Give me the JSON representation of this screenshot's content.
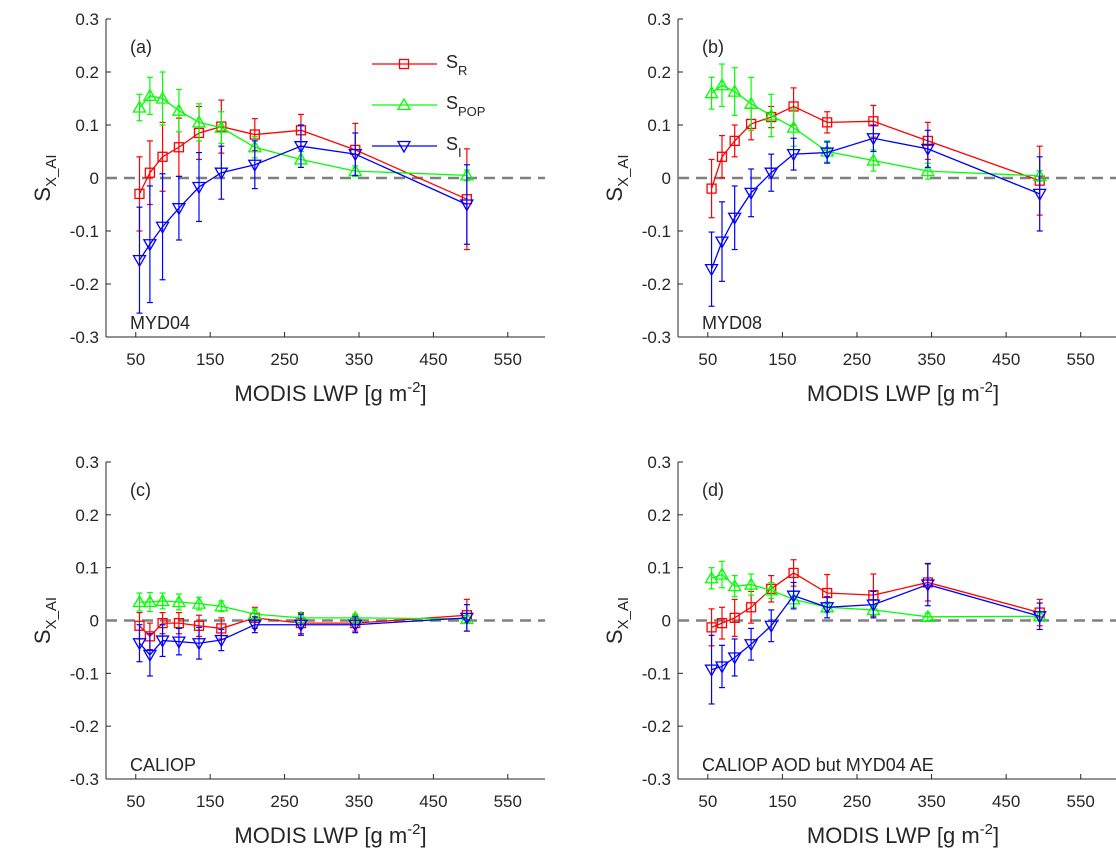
{
  "figure": {
    "xlabel": "MODIS LWP [g m",
    "xlabel_exp": "-2",
    "xlabel_close": "]",
    "ylabel": "S",
    "ylabel_sub": "X_AI",
    "zero_line_color": "#808080"
  },
  "legend": [
    {
      "base": "S",
      "sub": "R",
      "color": "#ff0000",
      "marker": "square"
    },
    {
      "base": "S",
      "sub": "POP",
      "color": "#00ff00",
      "marker": "triangle-up"
    },
    {
      "base": "S",
      "sub": "I",
      "color": "#0000ff",
      "marker": "triangle-down"
    }
  ],
  "chart_data": [
    {
      "type": "line",
      "panel": "(a)",
      "source": "MYD04",
      "xlim": [
        10,
        600
      ],
      "ylim": [
        -0.3,
        0.3
      ],
      "xticks": [
        50,
        150,
        250,
        350,
        450,
        550
      ],
      "yticks": [
        -0.3,
        -0.2,
        -0.1,
        0,
        0.1,
        0.2,
        0.3
      ],
      "x": [
        55,
        69,
        86,
        108,
        135,
        165,
        210,
        272,
        345,
        495
      ],
      "series": [
        {
          "name": "S_R",
          "color": "#ff0000",
          "marker": "square",
          "values": [
            -0.03,
            0.01,
            0.04,
            0.058,
            0.085,
            0.097,
            0.082,
            0.09,
            0.053,
            -0.04
          ],
          "errors": [
            0.07,
            0.06,
            0.065,
            0.055,
            0.05,
            0.05,
            0.03,
            0.03,
            0.05,
            0.095
          ]
        },
        {
          "name": "S_POP",
          "color": "#00ff00",
          "marker": "triangle-up",
          "values": [
            0.133,
            0.155,
            0.15,
            0.127,
            0.105,
            0.095,
            0.058,
            0.035,
            0.013,
            0.005
          ],
          "errors": [
            0.025,
            0.035,
            0.05,
            0.04,
            0.035,
            0.03,
            0.02,
            0.015,
            0.01,
            0.01
          ]
        },
        {
          "name": "S_I",
          "color": "#0000ff",
          "marker": "triangle-down",
          "values": [
            -0.155,
            -0.125,
            -0.092,
            -0.057,
            -0.017,
            0.01,
            0.025,
            0.06,
            0.045,
            -0.05
          ],
          "errors": [
            0.1,
            0.11,
            0.1,
            0.06,
            0.065,
            0.05,
            0.045,
            0.04,
            0.04,
            0.075
          ]
        }
      ]
    },
    {
      "type": "line",
      "panel": "(b)",
      "source": "MYD08",
      "xlim": [
        10,
        600
      ],
      "ylim": [
        -0.3,
        0.3
      ],
      "xticks": [
        50,
        150,
        250,
        350,
        450,
        550
      ],
      "yticks": [
        -0.3,
        -0.2,
        -0.1,
        0,
        0.1,
        0.2,
        0.3
      ],
      "x": [
        55,
        69,
        86,
        108,
        135,
        165,
        210,
        272,
        345,
        495
      ],
      "series": [
        {
          "name": "S_R",
          "color": "#ff0000",
          "marker": "square",
          "values": [
            -0.02,
            0.04,
            0.07,
            0.102,
            0.115,
            0.135,
            0.105,
            0.107,
            0.07,
            -0.005
          ],
          "errors": [
            0.055,
            0.04,
            0.03,
            0.03,
            0.02,
            0.035,
            0.02,
            0.03,
            0.035,
            0.065
          ]
        },
        {
          "name": "S_POP",
          "color": "#00ff00",
          "marker": "triangle-up",
          "values": [
            0.16,
            0.175,
            0.163,
            0.14,
            0.118,
            0.095,
            0.05,
            0.033,
            0.013,
            0.004
          ],
          "errors": [
            0.03,
            0.04,
            0.045,
            0.05,
            0.04,
            0.035,
            0.02,
            0.02,
            0.015,
            0.01
          ]
        },
        {
          "name": "S_I",
          "color": "#0000ff",
          "marker": "triangle-down",
          "values": [
            -0.172,
            -0.12,
            -0.075,
            -0.028,
            0.01,
            0.045,
            0.048,
            0.075,
            0.055,
            -0.03
          ],
          "errors": [
            0.07,
            0.075,
            0.06,
            0.045,
            0.035,
            0.03,
            0.02,
            0.025,
            0.035,
            0.07
          ]
        }
      ]
    },
    {
      "type": "line",
      "panel": "(c)",
      "source": "CALIOP",
      "xlim": [
        10,
        600
      ],
      "ylim": [
        -0.3,
        0.3
      ],
      "xticks": [
        50,
        150,
        250,
        350,
        450,
        550
      ],
      "yticks": [
        -0.3,
        -0.2,
        -0.1,
        0,
        0.1,
        0.2,
        0.3
      ],
      "x": [
        55,
        69,
        86,
        108,
        135,
        165,
        210,
        272,
        345,
        495
      ],
      "series": [
        {
          "name": "S_R",
          "color": "#ff0000",
          "marker": "square",
          "values": [
            -0.01,
            -0.03,
            -0.005,
            -0.005,
            -0.01,
            -0.015,
            0.005,
            -0.005,
            -0.005,
            0.01
          ],
          "errors": [
            0.025,
            0.025,
            0.02,
            0.02,
            0.02,
            0.02,
            0.02,
            0.02,
            0.015,
            0.03
          ]
        },
        {
          "name": "S_POP",
          "color": "#00ff00",
          "marker": "triangle-up",
          "values": [
            0.035,
            0.035,
            0.037,
            0.035,
            0.032,
            0.027,
            0.012,
            0.005,
            0.005,
            0.003
          ],
          "errors": [
            0.017,
            0.018,
            0.015,
            0.015,
            0.012,
            0.01,
            0.01,
            0.008,
            0.007,
            0.007
          ]
        },
        {
          "name": "S_I",
          "color": "#0000ff",
          "marker": "triangle-down",
          "values": [
            -0.043,
            -0.065,
            -0.038,
            -0.04,
            -0.043,
            -0.037,
            -0.008,
            -0.008,
            -0.008,
            0.005
          ],
          "errors": [
            0.035,
            0.04,
            0.03,
            0.025,
            0.03,
            0.02,
            0.015,
            0.02,
            0.015,
            0.025
          ]
        }
      ]
    },
    {
      "type": "line",
      "panel": "(d)",
      "source": "CALIOP AOD but MYD04 AE",
      "xlim": [
        10,
        600
      ],
      "ylim": [
        -0.3,
        0.3
      ],
      "xticks": [
        50,
        150,
        250,
        350,
        450,
        550
      ],
      "yticks": [
        -0.3,
        -0.2,
        -0.1,
        0,
        0.1,
        0.2,
        0.3
      ],
      "x": [
        55,
        69,
        86,
        108,
        135,
        165,
        210,
        272,
        345,
        495
      ],
      "series": [
        {
          "name": "S_R",
          "color": "#ff0000",
          "marker": "square",
          "values": [
            -0.013,
            -0.005,
            0.005,
            0.025,
            0.06,
            0.09,
            0.052,
            0.048,
            0.072,
            0.015
          ],
          "errors": [
            0.035,
            0.03,
            0.035,
            0.03,
            0.025,
            0.025,
            0.035,
            0.04,
            0.035,
            0.025
          ]
        },
        {
          "name": "S_POP",
          "color": "#00ff00",
          "marker": "triangle-up",
          "values": [
            0.08,
            0.087,
            0.065,
            0.068,
            0.057,
            0.04,
            0.025,
            0.02,
            0.007,
            0.008
          ],
          "errors": [
            0.02,
            0.025,
            0.02,
            0.02,
            0.015,
            0.015,
            0.01,
            0.01,
            0.007,
            0.007
          ]
        },
        {
          "name": "S_I",
          "color": "#0000ff",
          "marker": "triangle-down",
          "values": [
            -0.093,
            -0.087,
            -0.07,
            -0.045,
            -0.01,
            0.047,
            0.025,
            0.03,
            0.068,
            0.008
          ],
          "errors": [
            0.065,
            0.04,
            0.035,
            0.03,
            0.03,
            0.025,
            0.02,
            0.025,
            0.04,
            0.025
          ]
        }
      ]
    }
  ]
}
